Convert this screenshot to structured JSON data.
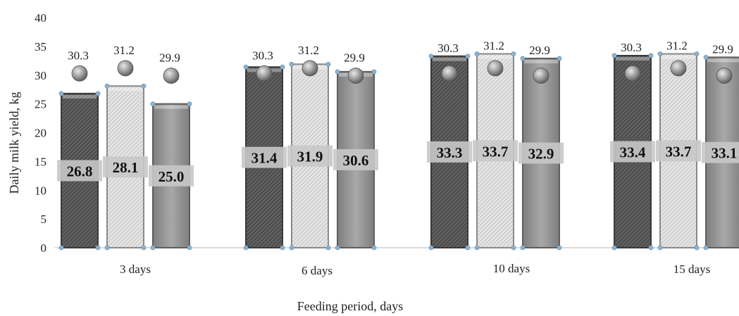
{
  "chart_data": {
    "type": "bar",
    "xlabel": "Feeding period, days",
    "ylabel": "Daily milk yield, kg",
    "ylim": [
      0,
      40
    ],
    "yticks": [
      0,
      5,
      10,
      15,
      20,
      25,
      30,
      35,
      40
    ],
    "categories": [
      "3 days",
      "6  days",
      "10 days",
      "15 days"
    ],
    "bar_values": [
      [
        26.8,
        28.1,
        25.0
      ],
      [
        31.4,
        31.9,
        30.6
      ],
      [
        33.3,
        33.7,
        32.9
      ],
      [
        33.4,
        33.7,
        33.1
      ]
    ],
    "bar_value_labels": [
      [
        "26.8",
        "28.1",
        "25.0"
      ],
      [
        "31.4",
        "31.9",
        "30.6"
      ],
      [
        "33.3",
        "33.7",
        "32.9"
      ],
      [
        "33.4",
        "33.7",
        "33.1"
      ]
    ],
    "marker_values": [
      [
        30.3,
        31.2,
        29.9
      ],
      [
        30.3,
        31.2,
        29.9
      ],
      [
        30.3,
        31.2,
        29.9
      ],
      [
        30.3,
        31.2,
        29.9
      ]
    ],
    "marker_value_labels": [
      [
        "30.3",
        "31.2",
        "29.9"
      ],
      [
        "30.3",
        "31.2",
        "29.9"
      ],
      [
        "30.3",
        "31.2",
        "29.9"
      ],
      [
        "30.3",
        "31.2",
        "29.9"
      ]
    ],
    "grid": false,
    "legend": "none",
    "colors": {
      "bar_dark": "#5a5a5a",
      "bar_light": "#dcdcdc",
      "bar_mid": "#9a9a9a",
      "marker": "#9c9c9c",
      "label_box": "#c8c8c8",
      "axis": "#cfcfcf",
      "corner_dot": "#8fb3cf"
    }
  }
}
